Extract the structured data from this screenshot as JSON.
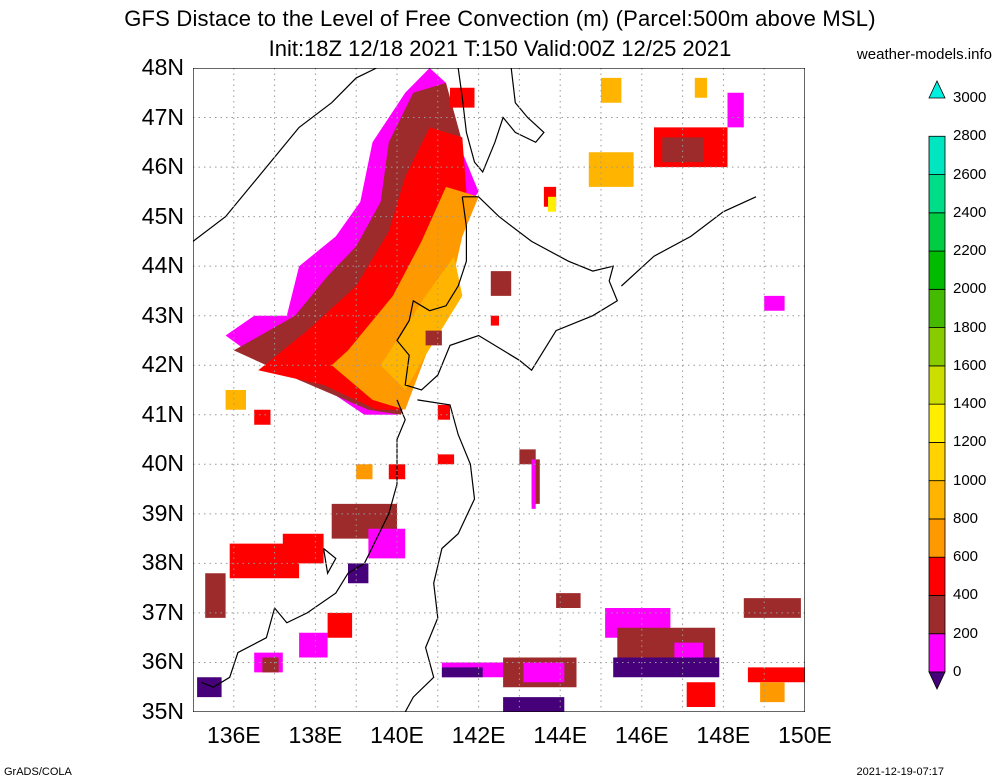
{
  "title": {
    "line1": "GFS Distace to the Level of Free Convection (m) (Parcel:500m above MSL)",
    "line2": "Init:18Z 12/18 2021 T:150 Valid:00Z 12/25 2021"
  },
  "site": "weather-models.info",
  "footer": {
    "left": "GrADS/COLA",
    "right": "2021-12-19-07:17"
  },
  "map": {
    "region": "Sea of Japan / Hokkaido / northern Honshu",
    "lon_range": [
      135,
      150
    ],
    "lat_range": [
      35,
      48
    ],
    "grid": "dotted"
  },
  "axes": {
    "lat_labels": [
      "48N",
      "47N",
      "46N",
      "45N",
      "44N",
      "43N",
      "42N",
      "41N",
      "40N",
      "39N",
      "38N",
      "37N",
      "36N",
      "35N"
    ],
    "lon_labels": [
      "136E",
      "138E",
      "140E",
      "142E",
      "144E",
      "146E",
      "148E",
      "150E"
    ]
  },
  "colorbar": {
    "labels": [
      "3000",
      "2800",
      "2600",
      "2400",
      "2200",
      "2000",
      "1800",
      "1600",
      "1400",
      "1200",
      "1000",
      "800",
      "600",
      "400",
      "200",
      "0"
    ],
    "colors": {
      "c0": "#46007a",
      "c200": "#ff00ff",
      "c400": "#9e2b2b",
      "c600": "#ff0000",
      "c800": "#ff9900",
      "c1000": "#ffb400",
      "c1200": "#ffd200",
      "c1400": "#ffee00",
      "c1600": "#ccdd00",
      "c1800": "#88cc00",
      "c2000": "#44bb00",
      "c2200": "#00bb00",
      "c2400": "#00cc44",
      "c2600": "#00dd88",
      "c2800": "#00e6c0",
      "c3000": "#00f0e0"
    }
  }
}
